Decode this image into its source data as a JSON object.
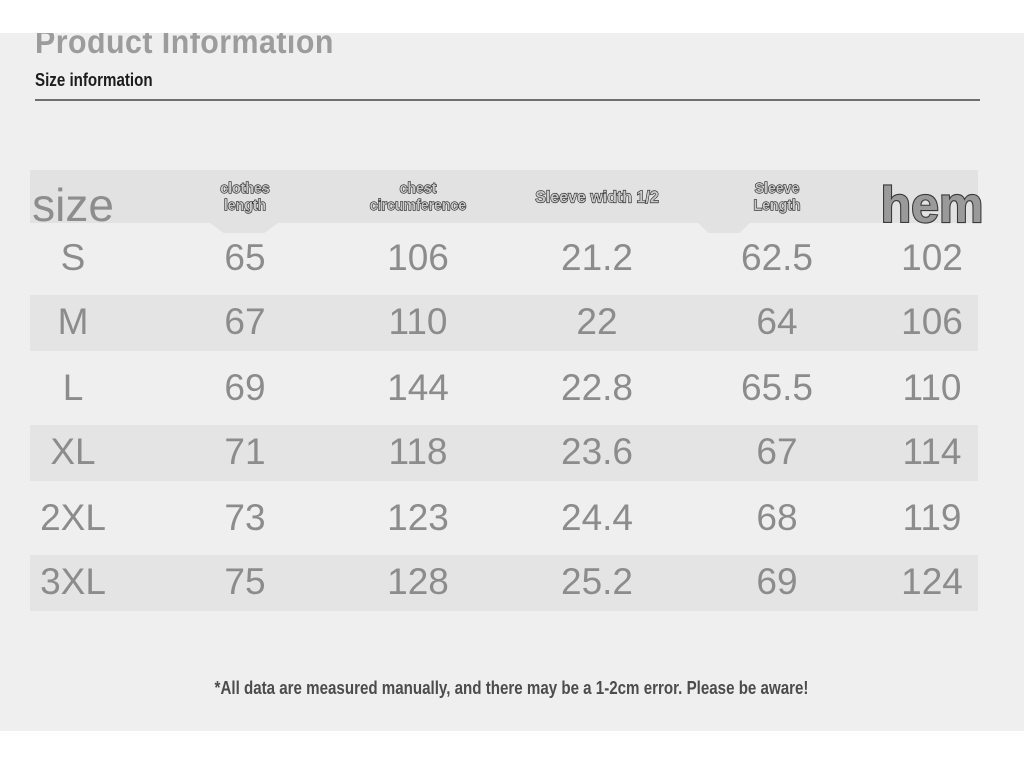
{
  "header": {
    "title": "Product Information",
    "subtitle": "Size information"
  },
  "table": {
    "columns": [
      "size",
      "clothes length",
      "chest circumference",
      "Sleeve width 1/2",
      "Sleeve Length",
      "hem"
    ],
    "rows": [
      [
        "S",
        "65",
        "106",
        "21.2",
        "62.5",
        "102"
      ],
      [
        "M",
        "67",
        "110",
        "22",
        "64",
        "106"
      ],
      [
        "L",
        "69",
        "144",
        "22.8",
        "65.5",
        "110"
      ],
      [
        "XL",
        "71",
        "118",
        "23.6",
        "67",
        "114"
      ],
      [
        "2XL",
        "73",
        "123",
        "24.4",
        "68",
        "119"
      ],
      [
        "3XL",
        "75",
        "128",
        "25.2",
        "69",
        "124"
      ]
    ]
  },
  "footnote": "*All data are measured manually, and there may be a 1-2cm error. Please be aware!",
  "colors": {
    "content_bg": "#f0eff0",
    "band_bg": "#e3e2e3",
    "stripe_bg": "#e5e4e5",
    "number_text": "#8c8c8c",
    "title_text": "#9c9c9c",
    "outline_text": "#181818"
  }
}
